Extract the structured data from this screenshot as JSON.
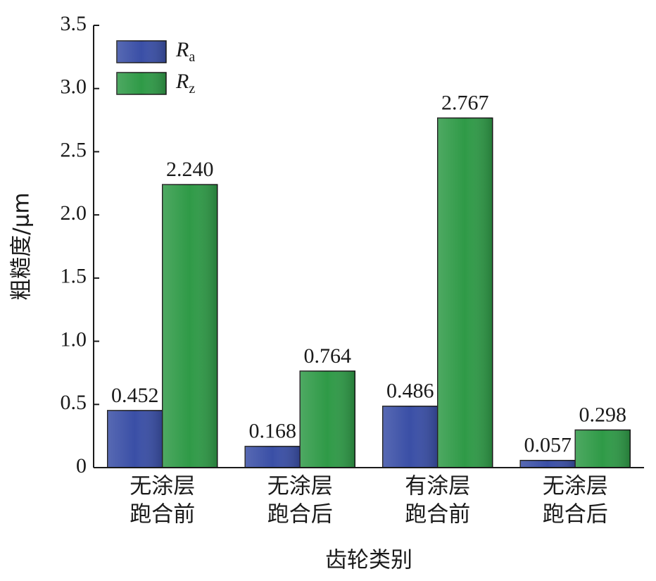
{
  "chart_data": {
    "type": "bar",
    "y_label": "粗糙度/μm",
    "x_label": "齿轮类别",
    "categories": [
      [
        "无涂层",
        "跑合前"
      ],
      [
        "无涂层",
        "跑合后"
      ],
      [
        "有涂层",
        "跑合前"
      ],
      [
        "无涂层",
        "跑合后"
      ]
    ],
    "series": [
      {
        "name": "R",
        "subscript": "a",
        "color": "#3a4fa6",
        "values": [
          0.452,
          0.168,
          0.486,
          0.057
        ],
        "value_labels": [
          "0.452",
          "0.168",
          "0.486",
          "0.057"
        ]
      },
      {
        "name": "R",
        "subscript": "z",
        "color": "#2f9a47",
        "values": [
          2.24,
          0.764,
          2.767,
          0.298
        ],
        "value_labels": [
          "2.240",
          "0.764",
          "2.767",
          "0.298"
        ]
      }
    ],
    "ylim": [
      0,
      3.5
    ],
    "yticks": [
      0,
      0.5,
      {
        "value": 1,
        "label": "1.0"
      },
      1.5,
      {
        "value": 2,
        "label": "2.0"
      },
      2.5,
      {
        "value": 3,
        "label": "3.0"
      },
      3.5
    ],
    "legend": "upper left"
  }
}
